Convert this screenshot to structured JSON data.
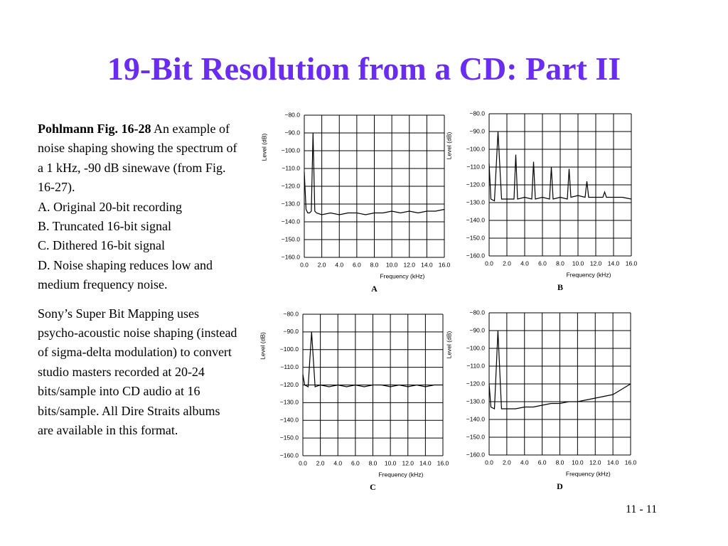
{
  "title": "19-Bit Resolution from a CD: Part II",
  "text": {
    "source": "Pohlmann Fig. 16-28",
    "caption": " An example of noise shaping showing the spectrum of a 1 kHz, -90 dB sinewave (from Fig. 16-27).",
    "items": [
      "A. Original 20-bit recording",
      "B. Truncated 16-bit signal",
      "C. Dithered 16-bit signal",
      "D. Noise shaping reduces low and medium frequency noise."
    ],
    "note": "Sony’s Super Bit Mapping uses psycho-acoustic noise shaping (instead of sigma-delta modulation) to convert studio masters recorded at 20-24 bits/sample into CD audio at 16 bits/sample.  All Dire Straits albums are available in this format."
  },
  "page_number": "11 - 11",
  "chart_data": [
    {
      "type": "line",
      "panel": "A",
      "xlabel": "Frequency (kHz)",
      "ylabel": "Level (dB)",
      "color": "#000000",
      "grid": true,
      "x": [
        0,
        0.2,
        0.4,
        0.6,
        0.8,
        1.0,
        1.2,
        1.4,
        2,
        3,
        4,
        5,
        6,
        7,
        8,
        9,
        10,
        11,
        12,
        13,
        14,
        15,
        16
      ],
      "values": [
        -112,
        -133,
        -135,
        -135,
        -134,
        -90,
        -134,
        -135,
        -136,
        -135,
        -136,
        -135,
        -135,
        -136,
        -135,
        -135,
        -134,
        -135,
        -134,
        -135,
        -134,
        -134,
        -133
      ],
      "xlim": [
        0,
        16
      ],
      "ylim": [
        -160,
        -80
      ],
      "xticks": [
        {
          "value": 0,
          "label": "0.0"
        },
        {
          "value": 2,
          "label": "2.0"
        },
        {
          "value": 4,
          "label": "4.0"
        },
        {
          "value": 6,
          "label": "6.0"
        },
        {
          "value": 8,
          "label": "8.0"
        },
        {
          "value": 10,
          "label": "10.0"
        },
        {
          "value": 12,
          "label": "12.0"
        },
        {
          "value": 14,
          "label": "14.0"
        },
        {
          "value": 16,
          "label": "16.0"
        }
      ],
      "yticks": [
        {
          "value": -80,
          "label": "−80.0"
        },
        {
          "value": -90,
          "label": "−90.0"
        },
        {
          "value": -100,
          "label": "−100.0"
        },
        {
          "value": -110,
          "label": "−110.0"
        },
        {
          "value": -120,
          "label": "−120.0"
        },
        {
          "value": -130,
          "label": "−130.0"
        },
        {
          "value": -140,
          "label": "−140.0"
        },
        {
          "value": -150,
          "label": "−150.0"
        },
        {
          "value": -160,
          "label": "−160.0"
        }
      ]
    },
    {
      "type": "line",
      "panel": "B",
      "xlabel": "Frequency (kHz)",
      "ylabel": "Level (dB)",
      "color": "#000000",
      "grid": true,
      "x": [
        0,
        0.2,
        0.6,
        1.0,
        1.4,
        2,
        2.8,
        3.0,
        3.2,
        4,
        4.8,
        5.0,
        5.2,
        6,
        6.8,
        7.0,
        7.2,
        8,
        8.8,
        9.0,
        9.2,
        10,
        10.8,
        11.0,
        11.2,
        12,
        12.8,
        13.0,
        13.2,
        14,
        15,
        16
      ],
      "values": [
        -108,
        -128,
        -129,
        -90,
        -128,
        -128,
        -128,
        -103,
        -128,
        -127,
        -128,
        -107,
        -128,
        -127,
        -128,
        -110,
        -128,
        -127,
        -128,
        -111,
        -127,
        -126,
        -127,
        -118,
        -127,
        -127,
        -127,
        -124,
        -127,
        -127,
        -127,
        -128
      ],
      "xlim": [
        0,
        16
      ],
      "ylim": [
        -160,
        -80
      ],
      "xticks": [
        {
          "value": 0,
          "label": "0.0"
        },
        {
          "value": 2,
          "label": "2.0"
        },
        {
          "value": 4,
          "label": "4.0"
        },
        {
          "value": 6,
          "label": "6.0"
        },
        {
          "value": 8,
          "label": "8.0"
        },
        {
          "value": 10,
          "label": "10.0"
        },
        {
          "value": 12,
          "label": "12.0"
        },
        {
          "value": 14,
          "label": "14.0"
        },
        {
          "value": 16,
          "label": "16.0"
        }
      ],
      "yticks": [
        {
          "value": -80,
          "label": "−80.0"
        },
        {
          "value": -90,
          "label": "−90.0"
        },
        {
          "value": -100,
          "label": "−100.0"
        },
        {
          "value": -110,
          "label": "−110.0"
        },
        {
          "value": -120,
          "label": "−120.0"
        },
        {
          "value": -130,
          "label": "−130.0"
        },
        {
          "value": -140,
          "label": "−140.0"
        },
        {
          "value": -150,
          "label": "−150.0"
        },
        {
          "value": -160,
          "label": "−160.0"
        }
      ]
    },
    {
      "type": "line",
      "panel": "C",
      "xlabel": "Frequency (kHz)",
      "ylabel": "Level (dB)",
      "color": "#000000",
      "grid": true,
      "x": [
        0,
        0.2,
        0.6,
        1.0,
        1.4,
        2,
        3,
        4,
        5,
        6,
        7,
        8,
        9,
        10,
        11,
        12,
        13,
        14,
        15,
        16
      ],
      "values": [
        -114,
        -120,
        -121,
        -90,
        -121,
        -120,
        -121,
        -120,
        -121,
        -120,
        -121,
        -120,
        -120,
        -121,
        -120,
        -121,
        -120,
        -121,
        -120,
        -120
      ],
      "xlim": [
        0,
        16
      ],
      "ylim": [
        -160,
        -80
      ],
      "xticks": [
        {
          "value": 0,
          "label": "0.0"
        },
        {
          "value": 2,
          "label": "2.0"
        },
        {
          "value": 4,
          "label": "4.0"
        },
        {
          "value": 6,
          "label": "6.0"
        },
        {
          "value": 8,
          "label": "8.0"
        },
        {
          "value": 10,
          "label": "10.0"
        },
        {
          "value": 12,
          "label": "12.0"
        },
        {
          "value": 14,
          "label": "14.0"
        },
        {
          "value": 16,
          "label": "16.0"
        }
      ],
      "yticks": [
        {
          "value": -80,
          "label": "−80.0"
        },
        {
          "value": -90,
          "label": "−90.0"
        },
        {
          "value": -100,
          "label": "−100.0"
        },
        {
          "value": -110,
          "label": "−110.0"
        },
        {
          "value": -120,
          "label": "−120.0"
        },
        {
          "value": -130,
          "label": "−130.0"
        },
        {
          "value": -140,
          "label": "−140.0"
        },
        {
          "value": -150,
          "label": "−150.0"
        },
        {
          "value": -160,
          "label": "−160.0"
        }
      ]
    },
    {
      "type": "line",
      "panel": "D",
      "xlabel": "Frequency (kHz)",
      "ylabel": "Level (dB)",
      "color": "#000000",
      "grid": true,
      "x": [
        0,
        0.2,
        0.6,
        1.0,
        1.4,
        2,
        3,
        4,
        5,
        6,
        7,
        8,
        9,
        10,
        11,
        12,
        13,
        14,
        15,
        16
      ],
      "values": [
        -120,
        -133,
        -134,
        -90,
        -134,
        -134,
        -134,
        -133,
        -133,
        -132,
        -131,
        -131,
        -130,
        -130,
        -129,
        -128,
        -127,
        -126,
        -123,
        -120
      ],
      "xlim": [
        0,
        16
      ],
      "ylim": [
        -160,
        -80
      ],
      "xticks": [
        {
          "value": 0,
          "label": "0.0"
        },
        {
          "value": 2,
          "label": "2.0"
        },
        {
          "value": 4,
          "label": "4.0"
        },
        {
          "value": 6,
          "label": "6.0"
        },
        {
          "value": 8,
          "label": "8.0"
        },
        {
          "value": 10,
          "label": "10.0"
        },
        {
          "value": 12,
          "label": "12.0"
        },
        {
          "value": 14,
          "label": "14.0"
        },
        {
          "value": 16,
          "label": "16.0"
        }
      ],
      "yticks": [
        {
          "value": -80,
          "label": "−80.0"
        },
        {
          "value": -90,
          "label": "−90.0"
        },
        {
          "value": -100,
          "label": "−100.0"
        },
        {
          "value": -110,
          "label": "−110.0"
        },
        {
          "value": -120,
          "label": "−120.0"
        },
        {
          "value": -130,
          "label": "−130.0"
        },
        {
          "value": -140,
          "label": "−140.0"
        },
        {
          "value": -150,
          "label": "−150.0"
        },
        {
          "value": -160,
          "label": "−160.0"
        }
      ]
    }
  ]
}
